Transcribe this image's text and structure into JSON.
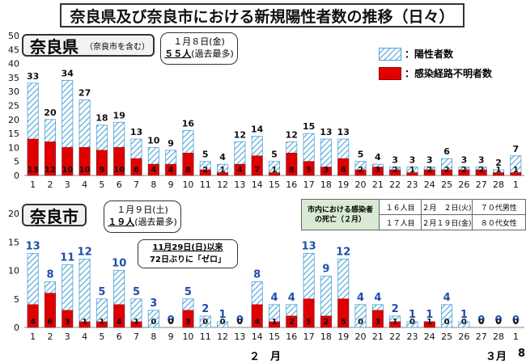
{
  "title": "奈良県及び奈良市における新規陽性者数の推移（日々）",
  "legend": {
    "positive": "：陽性者数",
    "unknown": "：感染経路不明者数"
  },
  "top_panel": {
    "label": "奈良県",
    "sublabel": "（奈良市を含む）",
    "note_line1": "１月８日(金)",
    "note_line2": "５５人",
    "note_line3": "(過去最多)"
  },
  "bottom_panel": {
    "label": "奈良市",
    "note_line1": "１月９日(土)",
    "note_line2": "１９人",
    "note_line3": "(過去最多)"
  },
  "callout": {
    "line1": "11月29日(日)以来",
    "line2": "72日ぶりに「ゼロ」"
  },
  "death_table": {
    "header_line1": "市内における感染者",
    "header_line2": "の死亡（２月）",
    "rows": [
      [
        "１６人目",
        "２月　２日(火)",
        "７０代男性"
      ],
      [
        "１７人目",
        "２月１９日(金)",
        "８０代女性"
      ]
    ]
  },
  "month_labels": {
    "feb": "２　月",
    "mar": "３月",
    "page": "8"
  },
  "colors": {
    "hatch_blue": "#4aa3d8",
    "red": "#e00000",
    "label_blue": "#1f4ea8"
  },
  "chart_data": [
    {
      "type": "bar",
      "title": "奈良県",
      "categories": [
        "1",
        "2",
        "3",
        "4",
        "5",
        "6",
        "7",
        "8",
        "9",
        "10",
        "11",
        "12",
        "13",
        "14",
        "15",
        "16",
        "17",
        "18",
        "19",
        "20",
        "21",
        "22",
        "23",
        "24",
        "25",
        "26",
        "27",
        "28",
        "1"
      ],
      "series": [
        {
          "name": "陽性者数",
          "values": [
            33,
            20,
            34,
            27,
            18,
            19,
            13,
            10,
            9,
            16,
            5,
            4,
            12,
            14,
            5,
            12,
            15,
            13,
            13,
            5,
            4,
            3,
            3,
            3,
            6,
            3,
            3,
            2,
            7
          ]
        },
        {
          "name": "感染経路不明者数",
          "values": [
            13,
            12,
            10,
            10,
            9,
            10,
            6,
            4,
            4,
            8,
            2,
            1,
            4,
            7,
            1,
            8,
            5,
            3,
            6,
            2,
            3,
            2,
            1,
            2,
            2,
            2,
            2,
            1,
            1
          ]
        }
      ],
      "ylim": [
        0,
        50
      ],
      "yticks": [
        0,
        5,
        10,
        15,
        20,
        25,
        30,
        35,
        40,
        45,
        50
      ]
    },
    {
      "type": "bar",
      "title": "奈良市",
      "categories": [
        "1",
        "2",
        "3",
        "4",
        "5",
        "6",
        "7",
        "8",
        "9",
        "10",
        "11",
        "12",
        "13",
        "14",
        "15",
        "16",
        "17",
        "18",
        "19",
        "20",
        "21",
        "22",
        "23",
        "24",
        "25",
        "26",
        "27",
        "28",
        "1"
      ],
      "series": [
        {
          "name": "陽性者数",
          "values": [
            13,
            8,
            11,
            12,
            5,
            10,
            5,
            3,
            0,
            5,
            2,
            1,
            0,
            8,
            4,
            4,
            13,
            9,
            12,
            4,
            4,
            2,
            1,
            1,
            4,
            1,
            0,
            0,
            0
          ]
        },
        {
          "name": "感染経路不明者数",
          "values": [
            4,
            6,
            3,
            1,
            1,
            4,
            1,
            0,
            0,
            3,
            0,
            0,
            0,
            4,
            1,
            2,
            5,
            2,
            5,
            0,
            3,
            1,
            0,
            1,
            0,
            0,
            0,
            0,
            0
          ]
        }
      ],
      "ylim": [
        0,
        20
      ],
      "yticks": [
        0,
        5,
        10,
        15,
        20
      ]
    }
  ]
}
